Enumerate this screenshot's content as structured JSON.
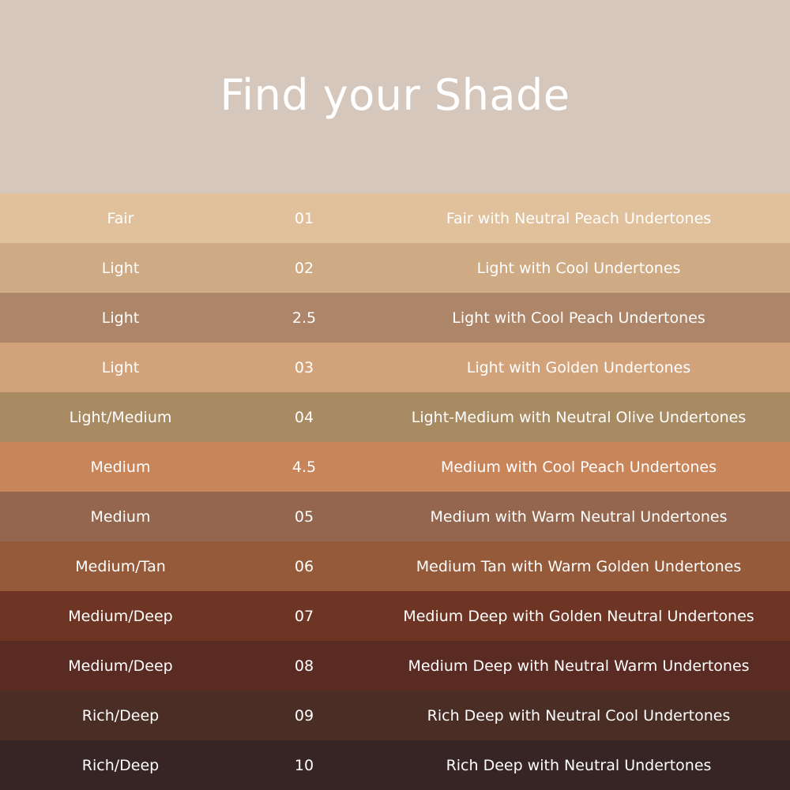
{
  "title": "Find your Shade",
  "header_color": "#d5c7bb",
  "shades": [
    {
      "tone": "Fair",
      "number": "01",
      "description": "Fair with Neutral Peach Undertones",
      "color": "#e0c19b"
    },
    {
      "tone": "Light",
      "number": "02",
      "description": "Light with Cool Undertones",
      "color": "#cfab85"
    },
    {
      "tone": "Light",
      "number": "2.5",
      "description": "Light with Cool Peach Undertones",
      "color": "#ad8568"
    },
    {
      "tone": "Light",
      "number": "03",
      "description": "Light with Golden Undertones",
      "color": "#d2a37b"
    },
    {
      "tone": "Light/Medium",
      "number": "04",
      "description": "Light-Medium with Neutral Olive Undertones",
      "color": "#a98b63"
    },
    {
      "tone": "Medium",
      "number": "4.5",
      "description": "Medium with Cool Peach Undertones",
      "color": "#c9855a"
    },
    {
      "tone": "Medium",
      "number": "05",
      "description": "Medium with Warm Neutral Undertones",
      "color": "#93664d"
    },
    {
      "tone": "Medium/Tan",
      "number": "06",
      "description": "Medium Tan with Warm Golden Undertones",
      "color": "#955a3a"
    },
    {
      "tone": "Medium/Deep",
      "number": "07",
      "description": "Medium Deep with Golden Neutral Undertones",
      "color": "#6e3525"
    },
    {
      "tone": "Medium/Deep",
      "number": "08",
      "description": "Medium Deep with Neutral Warm Undertones",
      "color": "#5a2b23"
    },
    {
      "tone": "Rich/Deep",
      "number": "09",
      "description": "Rich Deep with Neutral Cool Undertones",
      "color": "#4a2d25"
    },
    {
      "tone": "Rich/Deep",
      "number": "10",
      "description": "Rich Deep with Neutral Undertones",
      "color": "#362524"
    }
  ]
}
